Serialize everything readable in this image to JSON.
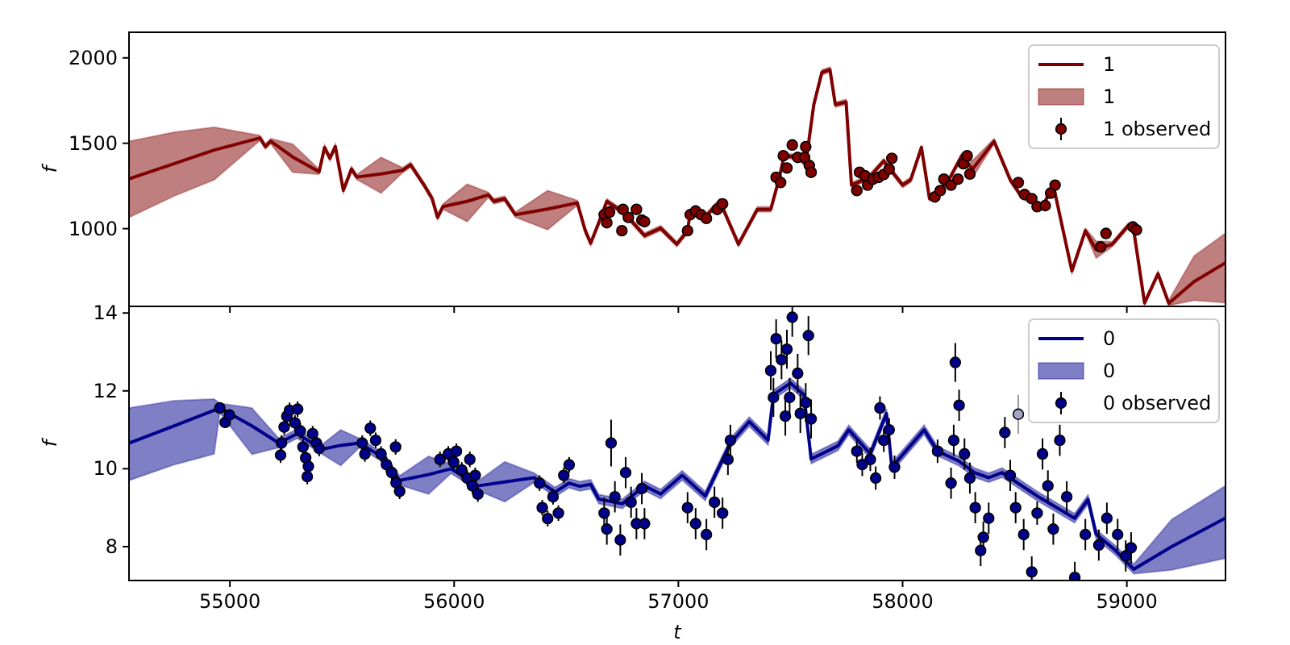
{
  "chart_data": [
    {
      "type": "line",
      "ylabel": "f",
      "xlim": [
        54550,
        59440
      ],
      "xticks": [
        55000,
        56000,
        57000,
        58000,
        59000
      ],
      "ylim": [
        545,
        2150
      ],
      "yticks": [
        1000,
        1500,
        2000
      ],
      "tick_labels": "y",
      "legend": "top right",
      "series": [
        {
          "name": "1",
          "color": "#800000",
          "x": [
            54550,
            54750,
            54930,
            55134,
            55158,
            55182,
            55280,
            55398,
            55422,
            55446,
            55470,
            55506,
            55542,
            55566,
            55674,
            55770,
            55806,
            55866,
            55902,
            55926,
            55950,
            56058,
            56153,
            56177,
            56225,
            56273,
            56417,
            56549,
            56585,
            56609,
            56645,
            56681,
            56760,
            56849,
            56921,
            56993,
            57041,
            57053,
            57120,
            57185,
            57268,
            57352,
            57412,
            57448,
            57472,
            57530,
            57568,
            57604,
            57640,
            57676,
            57700,
            57748,
            57772,
            57850,
            57916,
            58000,
            58036,
            58084,
            58120,
            58200,
            58264,
            58312,
            58408,
            58480,
            58528,
            58624,
            58672,
            58755,
            58815,
            58863,
            58935,
            59007,
            59031,
            59079,
            59139,
            59187,
            59300,
            59439
          ],
          "values": [
            1292,
            1380,
            1460,
            1531,
            1481,
            1512,
            1420,
            1333,
            1475,
            1412,
            1481,
            1224,
            1349,
            1302,
            1320,
            1342,
            1374,
            1255,
            1176,
            1066,
            1129,
            1160,
            1198,
            1160,
            1176,
            1082,
            1115,
            1151,
            988,
            915,
            1035,
            1160,
            1090,
            960,
            1003,
            909,
            988,
            1097,
            1070,
            1160,
            909,
            1113,
            1113,
            1286,
            1427,
            1420,
            1380,
            1726,
            1915,
            1931,
            1726,
            1742,
            1255,
            1300,
            1396,
            1255,
            1286,
            1475,
            1176,
            1270,
            1427,
            1349,
            1512,
            1286,
            1192,
            1129,
            1255,
            752,
            988,
            877,
            909,
            1019,
            988,
            565,
            736,
            563,
            690,
            799
          ],
          "lower": [
            1066,
            1190,
            1286,
            1516,
            1466,
            1497,
            1330,
            1318,
            1460,
            1397,
            1466,
            1209,
            1334,
            1287,
            1208,
            1327,
            1359,
            1240,
            1161,
            1051,
            1114,
            1041,
            1183,
            1145,
            1161,
            1067,
            994,
            1136,
            973,
            900,
            1020,
            1145,
            1075,
            945,
            988,
            894,
            973,
            1082,
            1055,
            1145,
            894,
            1098,
            1098,
            1271,
            1412,
            1405,
            1365,
            1711,
            1900,
            1916,
            1711,
            1727,
            1240,
            1285,
            1381,
            1240,
            1271,
            1460,
            1161,
            1255,
            1412,
            1299,
            1497,
            1271,
            1177,
            1114,
            1240,
            737,
            973,
            827,
            894,
            1004,
            973,
            550,
            721,
            550,
            580,
            566
          ],
          "upper": [
            1512,
            1565,
            1594,
            1546,
            1496,
            1527,
            1495,
            1348,
            1490,
            1427,
            1496,
            1239,
            1364,
            1317,
            1418,
            1357,
            1389,
            1270,
            1191,
            1081,
            1144,
            1261,
            1213,
            1175,
            1191,
            1097,
            1223,
            1166,
            1003,
            930,
            1050,
            1175,
            1105,
            975,
            1018,
            924,
            1003,
            1112,
            1085,
            1175,
            924,
            1128,
            1128,
            1301,
            1442,
            1435,
            1395,
            1741,
            1930,
            1946,
            1741,
            1757,
            1270,
            1315,
            1411,
            1270,
            1301,
            1490,
            1191,
            1285,
            1442,
            1399,
            1527,
            1301,
            1207,
            1144,
            1270,
            767,
            1003,
            927,
            924,
            1034,
            1003,
            580,
            751,
            580,
            840,
            972
          ]
        },
        {
          "name": "1 observed",
          "type": "scatter",
          "marker": "circle",
          "color": "#800000",
          "x": [
            56669,
            56681,
            56693,
            56748,
            56753,
            56777,
            56813,
            56837,
            56849,
            57041,
            57053,
            57077,
            57101,
            57125,
            57173,
            57197,
            57436,
            57456,
            57468,
            57484,
            57508,
            57532,
            57563,
            57568,
            57584,
            57592,
            57796,
            57808,
            57832,
            57844,
            57868,
            57892,
            57916,
            57940,
            57952,
            58144,
            58168,
            58184,
            58216,
            58247,
            58271,
            58288,
            58300,
            58516,
            58544,
            58576,
            58600,
            58636,
            58660,
            58680,
            58883,
            58907,
            59027,
            59043
          ],
          "values": [
            1082,
            1035,
            1097,
            988,
            1113,
            1066,
            1113,
            1050,
            1041,
            988,
            1082,
            1103,
            1082,
            1060,
            1113,
            1145,
            1301,
            1270,
            1427,
            1355,
            1490,
            1417,
            1417,
            1480,
            1370,
            1330,
            1223,
            1330,
            1310,
            1255,
            1290,
            1300,
            1317,
            1349,
            1412,
            1186,
            1223,
            1290,
            1255,
            1290,
            1380,
            1427,
            1320,
            1270,
            1200,
            1176,
            1129,
            1135,
            1208,
            1255,
            893,
            972,
            1010,
            993
          ]
        }
      ]
    },
    {
      "type": "line",
      "xlabel": "t",
      "ylabel": "f",
      "xlim": [
        54550,
        59440
      ],
      "xticks": [
        55000,
        56000,
        57000,
        58000,
        59000
      ],
      "ylim": [
        7.13,
        14.17
      ],
      "yticks": [
        8,
        10,
        12,
        14
      ],
      "legend": "top right",
      "series": [
        {
          "name": "0",
          "color": "#00008b",
          "x": [
            54550,
            54750,
            54930,
            54955,
            55098,
            55218,
            55300,
            55410,
            55494,
            55577,
            55680,
            55757,
            55886,
            55986,
            56106,
            56226,
            56357,
            56450,
            56512,
            56560,
            56609,
            56645,
            56750,
            56849,
            56921,
            57017,
            57120,
            57232,
            57316,
            57400,
            57424,
            57500,
            57560,
            57592,
            57712,
            57760,
            57856,
            57928,
            57952,
            58096,
            58156,
            58250,
            58320,
            58384,
            58444,
            58600,
            58767,
            58827,
            58863,
            58950,
            59031,
            59200,
            59439
          ],
          "values": [
            10.66,
            11.1,
            11.5,
            11.56,
            11.1,
            10.66,
            10.9,
            10.5,
            10.6,
            10.66,
            10.3,
            9.7,
            9.85,
            10.0,
            9.56,
            9.66,
            9.77,
            9.4,
            9.63,
            9.55,
            9.6,
            9.22,
            9.1,
            9.56,
            9.35,
            9.83,
            9.3,
            10.66,
            11.21,
            10.73,
            11.9,
            12.2,
            11.9,
            10.25,
            10.59,
            11.0,
            10.38,
            11.42,
            10.04,
            11.0,
            10.45,
            10.2,
            9.9,
            9.77,
            9.9,
            9.3,
            8.73,
            9.21,
            8.32,
            7.9,
            7.42,
            8.0,
            8.73
          ],
          "lower": [
            9.7,
            10.1,
            10.38,
            11.44,
            10.37,
            10.54,
            10.78,
            10.38,
            10.08,
            10.54,
            10.18,
            9.58,
            9.35,
            9.88,
            9.44,
            9.15,
            9.65,
            9.28,
            9.51,
            9.43,
            9.48,
            9.1,
            8.98,
            9.44,
            9.23,
            9.71,
            9.18,
            10.54,
            11.09,
            10.61,
            11.78,
            12.08,
            11.78,
            10.13,
            10.47,
            10.88,
            10.26,
            11.3,
            9.92,
            10.88,
            10.33,
            10.08,
            9.78,
            9.65,
            9.78,
            9.18,
            8.61,
            9.09,
            8.2,
            7.78,
            7.3,
            7.4,
            7.7
          ],
          "upper": [
            11.56,
            11.75,
            11.79,
            11.68,
            11.56,
            10.78,
            11.02,
            10.62,
            11.0,
            10.78,
            10.42,
            9.82,
            10.32,
            10.12,
            9.68,
            10.18,
            9.89,
            9.52,
            9.75,
            9.67,
            9.72,
            9.34,
            9.22,
            9.68,
            9.47,
            9.95,
            9.42,
            10.78,
            11.33,
            10.85,
            12.02,
            12.32,
            12.02,
            10.37,
            10.71,
            11.12,
            10.5,
            11.54,
            10.16,
            11.12,
            10.57,
            10.32,
            10.02,
            9.89,
            10.02,
            9.42,
            8.85,
            9.33,
            8.44,
            8.02,
            7.55,
            8.7,
            9.56
          ]
        },
        {
          "name": "0 observed",
          "type": "scatter",
          "marker": "circle",
          "color": "#00008b",
          "x": [
            54955,
            54979,
            54998,
            55226,
            55230,
            55242,
            55254,
            55266,
            55290,
            55302,
            55314,
            55326,
            55338,
            55345,
            55350,
            55369,
            55386,
            55398,
            55590,
            55602,
            55626,
            55650,
            55674,
            55698,
            55722,
            55739,
            55741,
            55757,
            55937,
            55974,
            55998,
            56010,
            56034,
            56058,
            56070,
            56082,
            56094,
            56106,
            56381,
            56393,
            56417,
            56441,
            56465,
            56489,
            56513,
            56669,
            56681,
            56700,
            56717,
            56741,
            56765,
            56789,
            56813,
            56837,
            56849,
            57041,
            57077,
            57125,
            57161,
            57197,
            57221,
            57232,
            57412,
            57424,
            57436,
            57460,
            57477,
            57484,
            57496,
            57508,
            57532,
            57544,
            57568,
            57580,
            57592,
            57796,
            57820,
            57856,
            57880,
            57899,
            57916,
            57940,
            57964,
            58156,
            58216,
            58228,
            58235,
            58252,
            58276,
            58300,
            58324,
            58348,
            58360,
            58384,
            58456,
            58480,
            58504,
            58540,
            58576,
            58600,
            58624,
            58648,
            58672,
            58701,
            58732,
            58768,
            58815,
            58875,
            58911,
            58959,
            58995,
            59019
          ],
          "values": [
            11.56,
            11.19,
            11.38,
            10.35,
            10.66,
            11.07,
            11.35,
            11.5,
            11.18,
            11.53,
            10.97,
            10.56,
            10.28,
            9.8,
            10.06,
            10.9,
            10.66,
            10.52,
            10.66,
            10.38,
            11.04,
            10.73,
            10.38,
            10.11,
            9.9,
            10.56,
            9.64,
            9.42,
            10.24,
            10.38,
            10.17,
            10.45,
            9.97,
            9.76,
            10.24,
            9.56,
            9.83,
            9.35,
            9.63,
            9.0,
            8.72,
            9.28,
            8.86,
            9.83,
            10.1,
            8.86,
            8.45,
            10.66,
            9.28,
            8.17,
            9.9,
            9.14,
            8.59,
            9.49,
            8.59,
            9.0,
            8.59,
            8.31,
            9.14,
            8.86,
            10.24,
            10.73,
            12.52,
            11.83,
            13.34,
            12.8,
            11.35,
            13.07,
            11.83,
            13.89,
            12.45,
            11.42,
            11.7,
            13.42,
            11.28,
            10.45,
            10.11,
            10.24,
            9.76,
            11.56,
            10.73,
            11.0,
            10.04,
            10.45,
            9.63,
            10.73,
            12.73,
            11.63,
            10.38,
            9.76,
            9.0,
            7.9,
            8.24,
            8.73,
            10.93,
            9.83,
            9.0,
            8.31,
            7.35,
            8.86,
            10.38,
            9.56,
            8.45,
            10.73,
            9.28,
            7.21,
            8.31,
            8.04,
            8.73,
            8.31,
            7.76,
            7.97
          ],
          "errors": [
            0.1,
            0.1,
            0.1,
            0.2,
            0.2,
            0.2,
            0.2,
            0.2,
            0.2,
            0.2,
            0.2,
            0.2,
            0.2,
            0.2,
            0.2,
            0.2,
            0.2,
            0.2,
            0.2,
            0.2,
            0.2,
            0.2,
            0.2,
            0.2,
            0.2,
            0.2,
            0.2,
            0.2,
            0.2,
            0.2,
            0.2,
            0.2,
            0.2,
            0.2,
            0.2,
            0.2,
            0.2,
            0.2,
            0.2,
            0.2,
            0.2,
            0.2,
            0.2,
            0.2,
            0.2,
            0.4,
            0.4,
            0.6,
            0.4,
            0.4,
            0.4,
            0.4,
            0.4,
            0.4,
            0.4,
            0.4,
            0.4,
            0.4,
            0.4,
            0.4,
            0.4,
            0.4,
            0.5,
            0.5,
            0.5,
            0.5,
            0.5,
            0.5,
            0.5,
            0.5,
            0.5,
            0.5,
            0.5,
            0.5,
            0.5,
            0.3,
            0.3,
            0.3,
            0.3,
            0.3,
            0.3,
            0.3,
            0.3,
            0.3,
            0.4,
            0.4,
            0.5,
            0.4,
            0.4,
            0.4,
            0.4,
            0.4,
            0.4,
            0.4,
            0.4,
            0.4,
            0.4,
            0.4,
            0.4,
            0.3,
            0.4,
            0.4,
            0.4,
            0.4,
            0.4,
            0.4,
            0.4,
            0.4,
            0.4,
            0.4,
            0.4,
            0.4
          ]
        },
        {
          "type": "scatter",
          "marker": "circle",
          "color": "#a4a4c4",
          "x": [
            58516
          ],
          "values": [
            11.4
          ],
          "errors": [
            0.5
          ]
        }
      ]
    }
  ]
}
